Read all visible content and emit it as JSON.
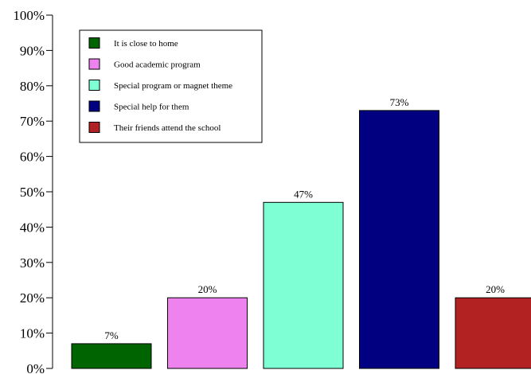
{
  "chart_data": {
    "type": "bar",
    "categories": [
      "It is close to home",
      "Good academic program",
      "Special program or magnet theme",
      "Special help for them",
      "Their friends attend the school"
    ],
    "values": [
      7,
      20,
      47,
      73,
      20
    ],
    "data_labels": [
      "7%",
      "20%",
      "47%",
      "73%",
      "20%"
    ],
    "colors": [
      "#006400",
      "#EE82EE",
      "#7FFFD4",
      "#000080",
      "#B22222"
    ],
    "ylim": [
      0,
      100
    ],
    "yticks": [
      0,
      10,
      20,
      30,
      40,
      50,
      60,
      70,
      80,
      90,
      100
    ],
    "ytick_labels": [
      "0%",
      "10%",
      "20%",
      "30%",
      "40%",
      "50%",
      "60%",
      "70%",
      "80%",
      "90%",
      "100%"
    ],
    "title": "",
    "xlabel": "",
    "ylabel": "",
    "grid": false,
    "legend": {
      "position": "top-left",
      "entries": [
        "It is close to home",
        "Good academic program",
        "Special program or magnet theme",
        "Special help for them",
        "Their friends attend the school"
      ]
    }
  }
}
